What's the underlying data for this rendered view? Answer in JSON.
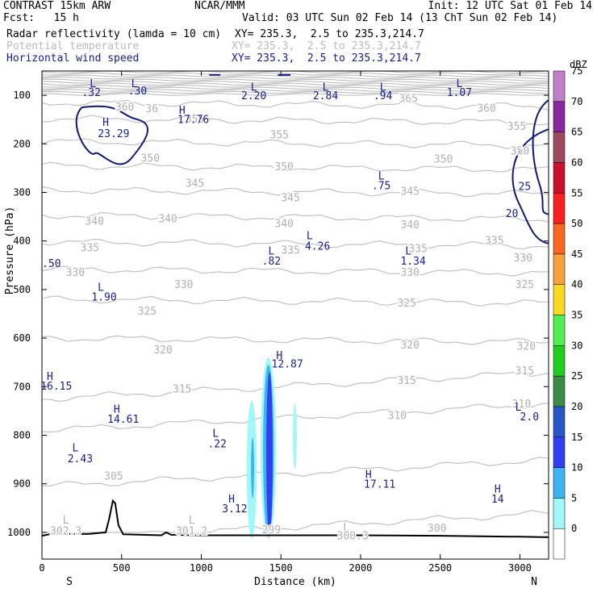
{
  "header": {
    "model": "CONTRAST 15km ARW",
    "center": "NCAR/MMM",
    "init": "Init: 12 UTC Sat 01 Feb 14",
    "fcst": "Fcst:   15 h",
    "valid": "Valid: 03 UTC Sun 02 Feb 14 (13 ChT Sun 02 Feb 14)",
    "field1": "Radar reflectivity (lamda = 10 cm)",
    "field1_xy": "XY= 235.3,  2.5 to 235.3,214.7",
    "field2": "Potential temperature",
    "field2_xy": "XY= 235.3,  2.5 to 235.3,214.7",
    "field3": "Horizontal wind speed",
    "field3_xy": "XY= 235.3,  2.5 to 235.3,214.7"
  },
  "chart_data": {
    "type": "cross-section",
    "xlabel": "Distance (km)",
    "ylabel": "Pressure (hPa)",
    "xlim": [
      0,
      3180
    ],
    "ylim": [
      1055,
      50
    ],
    "x_ticks": [
      0,
      500,
      1000,
      1500,
      2000,
      2500,
      3000
    ],
    "y_ticks": [
      100,
      200,
      300,
      400,
      500,
      600,
      700,
      800,
      900,
      1000
    ],
    "left_end": "S",
    "right_end": "N",
    "colorbar": {
      "unit": "dBZ",
      "levels": [
        "0",
        "5",
        "10",
        "15",
        "20",
        "25",
        "30",
        "35",
        "40",
        "45",
        "50",
        "55",
        "60",
        "65",
        "70",
        "75"
      ],
      "colors": [
        "#ffffff",
        "#a0f8f8",
        "#40b4f0",
        "#3040f0",
        "#2858c8",
        "#3a8a48",
        "#20cc20",
        "#50f050",
        "#f8d820",
        "#f8a040",
        "#f86820",
        "#f82020",
        "#c8102a",
        "#a04860",
        "#8a28a0",
        "#c080c8"
      ]
    },
    "theta_contours": [
      {
        "level": "365",
        "p": 125
      },
      {
        "level": "360",
        "p": 158
      },
      {
        "level": "355",
        "p": 205
      },
      {
        "level": "350",
        "p": 255
      },
      {
        "level": "345",
        "p": 305
      },
      {
        "level": "340",
        "p": 357
      },
      {
        "level": "335",
        "p": 412
      },
      {
        "level": "330",
        "p": 468
      },
      {
        "level": "325",
        "p": 530
      },
      {
        "level": "320",
        "p": 610
      },
      {
        "level": "315",
        "p": 700
      },
      {
        "level": "310",
        "p": 765
      },
      {
        "level": "305",
        "p": 880
      },
      {
        "level": "300",
        "p": 990
      }
    ],
    "theta_labels": [
      {
        "text": "365",
        "x": 2300,
        "p": 107
      },
      {
        "text": "360",
        "x": 520,
        "p": 125
      },
      {
        "text": "360",
        "x": 2790,
        "p": 127
      },
      {
        "text": "36",
        "x": 690,
        "p": 128
      },
      {
        "text": "355",
        "x": 960,
        "p": 150
      },
      {
        "text": "355",
        "x": 1490,
        "p": 182
      },
      {
        "text": "355",
        "x": 2980,
        "p": 165
      },
      {
        "text": "350",
        "x": 680,
        "p": 230
      },
      {
        "text": "350",
        "x": 1520,
        "p": 248
      },
      {
        "text": "350",
        "x": 2520,
        "p": 232
      },
      {
        "text": "350",
        "x": 3000,
        "p": 215
      },
      {
        "text": "345",
        "x": 960,
        "p": 282
      },
      {
        "text": "345",
        "x": 1560,
        "p": 312
      },
      {
        "text": "345",
        "x": 2310,
        "p": 298
      },
      {
        "text": "340",
        "x": 330,
        "p": 360
      },
      {
        "text": "340",
        "x": 790,
        "p": 355
      },
      {
        "text": "340",
        "x": 1520,
        "p": 365
      },
      {
        "text": "340",
        "x": 2310,
        "p": 367
      },
      {
        "text": "335",
        "x": 300,
        "p": 415
      },
      {
        "text": "335",
        "x": 1560,
        "p": 420
      },
      {
        "text": "335",
        "x": 2360,
        "p": 416
      },
      {
        "text": "335",
        "x": 2840,
        "p": 400
      },
      {
        "text": "330",
        "x": 210,
        "p": 465
      },
      {
        "text": "330",
        "x": 890,
        "p": 490
      },
      {
        "text": "330",
        "x": 2310,
        "p": 465
      },
      {
        "text": "330",
        "x": 3020,
        "p": 435
      },
      {
        "text": "325",
        "x": 660,
        "p": 545
      },
      {
        "text": "325",
        "x": 2290,
        "p": 528
      },
      {
        "text": "325",
        "x": 3030,
        "p": 490
      },
      {
        "text": "320",
        "x": 760,
        "p": 625
      },
      {
        "text": "320",
        "x": 2310,
        "p": 615
      },
      {
        "text": "320",
        "x": 3040,
        "p": 617
      },
      {
        "text": "315",
        "x": 880,
        "p": 705
      },
      {
        "text": "315",
        "x": 2290,
        "p": 688
      },
      {
        "text": "315",
        "x": 3030,
        "p": 668
      },
      {
        "text": "310",
        "x": 2230,
        "p": 760
      },
      {
        "text": "310",
        "x": 3010,
        "p": 736
      },
      {
        "text": "305",
        "x": 450,
        "p": 885
      },
      {
        "text": "300",
        "x": 2480,
        "p": 992
      },
      {
        "text": "299",
        "x": 1440,
        "p": 995
      }
    ],
    "wind_labels": [
      {
        "text": "L",
        "x": 320,
        "p": 75,
        "dx": -20
      },
      {
        "text": ".32",
        "x": 310,
        "p": 93
      },
      {
        "text": "L",
        "x": 580,
        "p": 75
      },
      {
        "text": ".30",
        "x": 600,
        "p": 90
      },
      {
        "text": "L",
        "x": 1330,
        "p": 82
      },
      {
        "text": "2.20",
        "x": 1330,
        "p": 100
      },
      {
        "text": "L",
        "x": 1780,
        "p": 82
      },
      {
        "text": "2.84",
        "x": 1780,
        "p": 100
      },
      {
        "text": "L",
        "x": 2140,
        "p": 82
      },
      {
        "text": ".94",
        "x": 2140,
        "p": 100
      },
      {
        "text": "L",
        "x": 2620,
        "p": 75
      },
      {
        "text": "1.07",
        "x": 2620,
        "p": 93
      },
      {
        "text": "H",
        "x": 400,
        "p": 155
      },
      {
        "text": "23.29",
        "x": 450,
        "p": 178
      },
      {
        "text": "H",
        "x": 880,
        "p": 130
      },
      {
        "text": "17.76",
        "x": 950,
        "p": 149
      },
      {
        "text": "L",
        "x": 2130,
        "p": 265
      },
      {
        "text": ".75",
        "x": 2130,
        "p": 285
      },
      {
        "text": "L",
        "x": 1680,
        "p": 388
      },
      {
        "text": "4.26",
        "x": 1730,
        "p": 410
      },
      {
        "text": "L",
        "x": 1440,
        "p": 420
      },
      {
        "text": ".82",
        "x": 1440,
        "p": 440
      },
      {
        "text": "L",
        "x": 2300,
        "p": 420
      },
      {
        "text": "1.34",
        "x": 2330,
        "p": 440
      },
      {
        "text": ".50",
        "x": 60,
        "p": 445
      },
      {
        "text": "L",
        "x": 370,
        "p": 494
      },
      {
        "text": "1.90",
        "x": 390,
        "p": 514
      },
      {
        "text": "H",
        "x": 1490,
        "p": 635
      },
      {
        "text": "12.87",
        "x": 1540,
        "p": 652
      },
      {
        "text": "H",
        "x": 50,
        "p": 678
      },
      {
        "text": "16.15",
        "x": 90,
        "p": 698
      },
      {
        "text": "H",
        "x": 470,
        "p": 745
      },
      {
        "text": "14.61",
        "x": 510,
        "p": 766
      },
      {
        "text": "L",
        "x": 1090,
        "p": 795
      },
      {
        "text": ".22",
        "x": 1100,
        "p": 817
      },
      {
        "text": "L",
        "x": 2990,
        "p": 741
      },
      {
        "text": "2.0",
        "x": 3060,
        "p": 761
      },
      {
        "text": "L",
        "x": 210,
        "p": 825
      },
      {
        "text": "2.43",
        "x": 240,
        "p": 847
      },
      {
        "text": "H",
        "x": 2050,
        "p": 880
      },
      {
        "text": "17.11",
        "x": 2120,
        "p": 900
      },
      {
        "text": "H",
        "x": 2860,
        "p": 910
      },
      {
        "text": "14",
        "x": 2860,
        "p": 930
      },
      {
        "text": "H",
        "x": 1190,
        "p": 930
      },
      {
        "text": "3.12",
        "x": 1210,
        "p": 950
      },
      {
        "text": "20",
        "x": 2950,
        "p": 342
      },
      {
        "text": "25",
        "x": 3030,
        "p": 287
      }
    ],
    "theta_extrema": [
      {
        "text": "L",
        "x": 150,
        "p": 975
      },
      {
        "text": "302.3",
        "x": 150,
        "p": 998
      },
      {
        "text": "L",
        "x": 940,
        "p": 975
      },
      {
        "text": "301.2",
        "x": 940,
        "p": 998
      },
      {
        "text": "L",
        "x": 1910,
        "p": 990
      },
      {
        "text": "300.3",
        "x": 1950,
        "p": 1008
      }
    ],
    "reflectivity_cells": [
      {
        "x": [
          1285,
          1348
        ],
        "p": [
          728,
          1012
        ],
        "dbz": 5
      },
      {
        "x": [
          1372,
          1470
        ],
        "p": [
          640,
          1012
        ],
        "dbz": 5
      },
      {
        "x": [
          1575,
          1600
        ],
        "p": [
          735,
          870
        ],
        "dbz": 5
      },
      {
        "x": [
          1388,
          1455
        ],
        "p": [
          655,
          1008
        ],
        "dbz": 10
      },
      {
        "x": [
          1312,
          1332
        ],
        "p": [
          805,
          930
        ],
        "dbz": 10
      },
      {
        "x": [
          1408,
          1448
        ],
        "p": [
          670,
          1005
        ],
        "dbz": 15
      }
    ],
    "terrain": [
      {
        "x": 0,
        "p": 1007
      },
      {
        "x": 60,
        "p": 1003
      },
      {
        "x": 80,
        "p": 1000
      },
      {
        "x": 100,
        "p": 1004
      },
      {
        "x": 300,
        "p": 1003
      },
      {
        "x": 400,
        "p": 1000
      },
      {
        "x": 420,
        "p": 975
      },
      {
        "x": 445,
        "p": 935
      },
      {
        "x": 460,
        "p": 940
      },
      {
        "x": 480,
        "p": 985
      },
      {
        "x": 510,
        "p": 1004
      },
      {
        "x": 750,
        "p": 1006
      },
      {
        "x": 780,
        "p": 1000
      },
      {
        "x": 810,
        "p": 1005
      },
      {
        "x": 1000,
        "p": 1006
      },
      {
        "x": 1500,
        "p": 1006
      },
      {
        "x": 2000,
        "p": 1006
      },
      {
        "x": 2500,
        "p": 1007
      },
      {
        "x": 3000,
        "p": 1009
      },
      {
        "x": 3180,
        "p": 1010
      }
    ]
  }
}
